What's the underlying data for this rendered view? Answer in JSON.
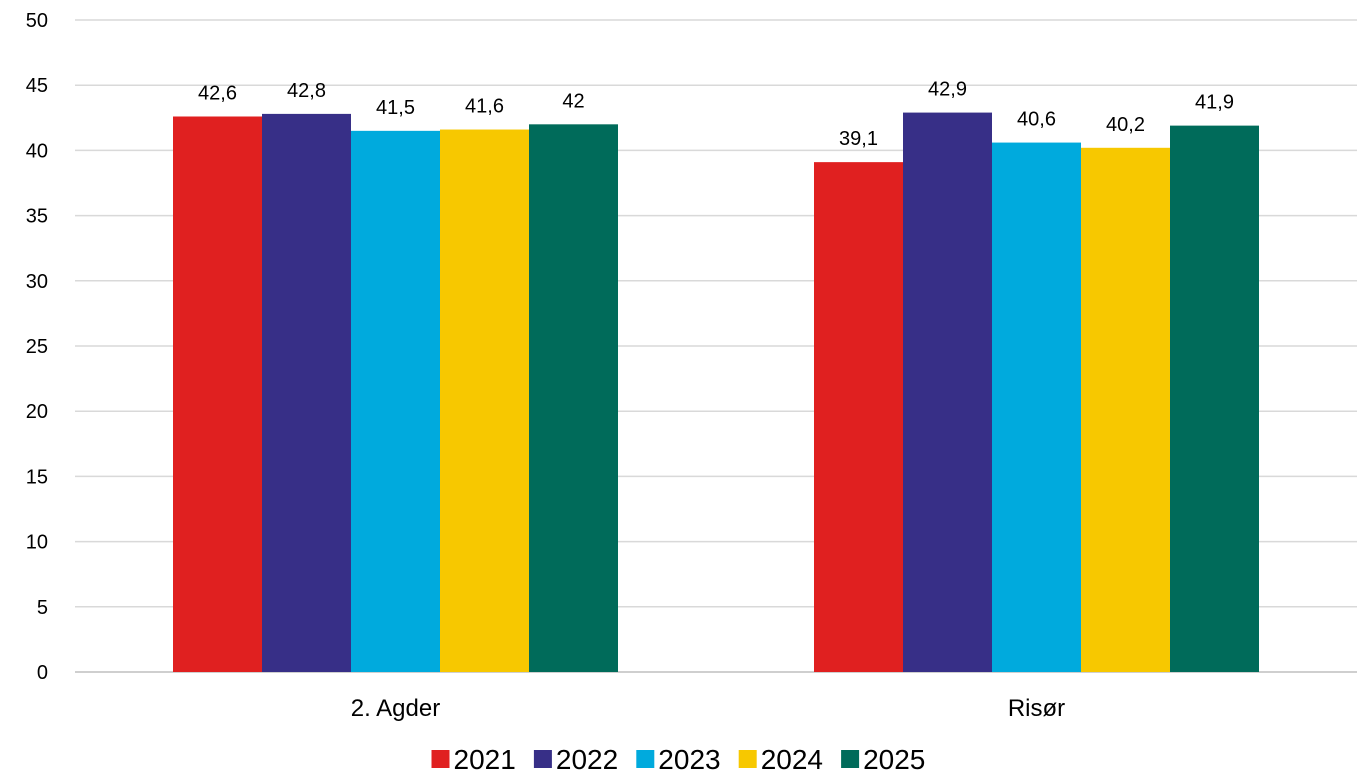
{
  "chart_data": {
    "type": "bar",
    "categories": [
      "2. Agder",
      "Risør"
    ],
    "series": [
      {
        "name": "2021",
        "color": "#e02020",
        "values": [
          42.6,
          39.1
        ],
        "labels": [
          "42,6",
          "39,1"
        ]
      },
      {
        "name": "2022",
        "color": "#372f87",
        "values": [
          42.8,
          42.9
        ],
        "labels": [
          "42,8",
          "42,9"
        ]
      },
      {
        "name": "2023",
        "color": "#00aadd",
        "values": [
          41.5,
          40.6
        ],
        "labels": [
          "41,5",
          "40,6"
        ]
      },
      {
        "name": "2024",
        "color": "#f7c800",
        "values": [
          41.6,
          40.2
        ],
        "labels": [
          "41,6",
          "40,2"
        ]
      },
      {
        "name": "2025",
        "color": "#006b5a",
        "values": [
          42,
          41.9
        ],
        "labels": [
          "42",
          "41,9"
        ]
      }
    ],
    "yticks": [
      "0",
      "5",
      "10",
      "15",
      "20",
      "25",
      "30",
      "35",
      "40",
      "45",
      "50"
    ],
    "ylim": [
      0,
      50
    ],
    "title": "",
    "xlabel": "",
    "ylabel": "",
    "grid": true,
    "legend_position": "bottom"
  }
}
